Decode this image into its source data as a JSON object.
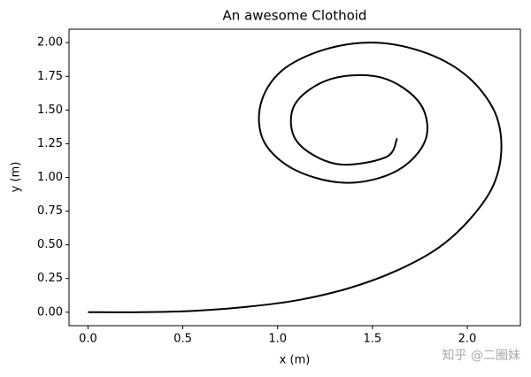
{
  "chart_data": {
    "type": "line",
    "title": "An awesome Clothoid",
    "x_label": "x (m)",
    "y_label": "y (m)",
    "watermark": "知乎 @二圈妹",
    "series": [
      {
        "name": "clothoid",
        "color": "#000000",
        "x": [
          0,
          0.28,
          0.56,
          0.84,
          1.11,
          1.38,
          1.63,
          1.85,
          2.02,
          2.14,
          2.18,
          2.14,
          2.0,
          1.79,
          1.52,
          1.25,
          1.02,
          0.91,
          0.93,
          1.1,
          1.37,
          1.63,
          1.78,
          1.75,
          1.55,
          1.28,
          1.09,
          1.1,
          1.31,
          1.57,
          1.63
        ],
        "values": [
          0,
          0.0,
          0.01,
          0.04,
          0.09,
          0.18,
          0.31,
          0.48,
          0.7,
          0.95,
          1.23,
          1.5,
          1.75,
          1.92,
          2.0,
          1.95,
          1.79,
          1.54,
          1.26,
          1.05,
          0.96,
          1.05,
          1.28,
          1.55,
          1.74,
          1.73,
          1.54,
          1.27,
          1.1,
          1.15,
          1.29
        ]
      }
    ],
    "xlim": [
      -0.1,
      2.28
    ],
    "ylim": [
      -0.1,
      2.1
    ],
    "xticks": [
      {
        "value": 0,
        "label": "0.0"
      },
      {
        "value": 0.5,
        "label": "0.5"
      },
      {
        "value": 1,
        "label": "1.0"
      },
      {
        "value": 1.5,
        "label": "1.5"
      },
      {
        "value": 2,
        "label": "2.0"
      }
    ],
    "yticks": [
      {
        "value": 0,
        "label": "0.00"
      },
      {
        "value": 0.25,
        "label": "0.25"
      },
      {
        "value": 0.5,
        "label": "0.50"
      },
      {
        "value": 0.75,
        "label": "0.75"
      },
      {
        "value": 1,
        "label": "1.00"
      },
      {
        "value": 1.25,
        "label": "1.25"
      },
      {
        "value": 1.5,
        "label": "1.50"
      },
      {
        "value": 1.75,
        "label": "1.75"
      },
      {
        "value": 2,
        "label": "2.00"
      }
    ],
    "grid": false
  }
}
